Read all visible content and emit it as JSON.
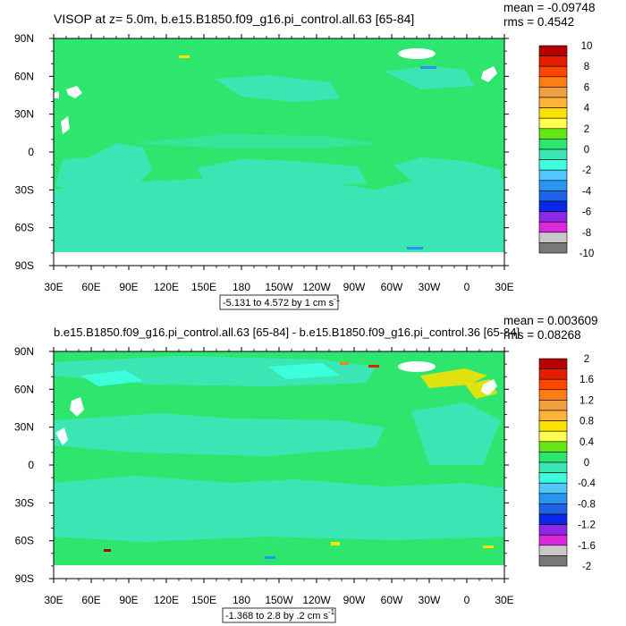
{
  "chart_data": [
    {
      "type": "heatmap",
      "title": "VISOP at z=   5.0m, b.e15.B1850.f09_g16.pi_control.all.63 [65-84]",
      "stats": {
        "mean": "mean = -0.09748",
        "rms": "rms = 0.4542"
      },
      "x_ticks": [
        "30E",
        "60E",
        "90E",
        "120E",
        "150E",
        "180",
        "150W",
        "120W",
        "90W",
        "60W",
        "30W",
        "0",
        "30E"
      ],
      "y_ticks": [
        "90N",
        "60N",
        "30N",
        "0",
        "30S",
        "60S",
        "90S"
      ],
      "ylim": [
        -90,
        90
      ],
      "xlim": [
        30,
        390
      ],
      "colorbar_labels": [
        "10",
        "8",
        "6",
        "4",
        "2",
        "0",
        "-2",
        "-4",
        "-6",
        "-8",
        "-10"
      ],
      "colorbar_colors": [
        "#b40000",
        "#e61e00",
        "#ff4600",
        "#ff7e14",
        "#f0a040",
        "#ffb43c",
        "#ffe100",
        "#ffff50",
        "#64e614",
        "#2ee66e",
        "#3ce6b4",
        "#3cffdc",
        "#50c8ff",
        "#2896f0",
        "#1e64e6",
        "#0a28e6",
        "#8c28e6",
        "#dc28dc",
        "#c8c8c8",
        "#787878"
      ],
      "contour_info": "-5.131 to 4.572 by 1 cm s",
      "contour_unit_sup": "-1"
    },
    {
      "type": "heatmap",
      "title": "b.e15.B1850.f09_g16.pi_control.all.63 [65-84] - b.e15.B1850.f09_g16.pi_control.36 [65-84]",
      "stats": {
        "mean": "mean = 0.003609",
        "rms": "rms = 0.08268"
      },
      "x_ticks": [
        "30E",
        "60E",
        "90E",
        "120E",
        "150E",
        "180",
        "150W",
        "120W",
        "90W",
        "60W",
        "30W",
        "0",
        "30E"
      ],
      "y_ticks": [
        "90N",
        "60N",
        "30N",
        "0",
        "30S",
        "60S",
        "90S"
      ],
      "ylim": [
        -90,
        90
      ],
      "xlim": [
        30,
        390
      ],
      "colorbar_labels": [
        "2",
        "1.6",
        "1.2",
        "0.8",
        "0.4",
        "0",
        "-0.4",
        "-0.8",
        "-1.2",
        "-1.6",
        "-2"
      ],
      "colorbar_colors": [
        "#b40000",
        "#e61e00",
        "#ff4600",
        "#ff7e14",
        "#f0a040",
        "#ffb43c",
        "#ffe100",
        "#ffff50",
        "#64e614",
        "#2ee66e",
        "#3ce6b4",
        "#3cffdc",
        "#50c8ff",
        "#2896f0",
        "#1e64e6",
        "#0a28e6",
        "#8c28e6",
        "#dc28dc",
        "#c8c8c8",
        "#787878"
      ],
      "contour_info": "-1.368 to 2.8 by .2 cm s",
      "contour_unit_sup": "-1"
    }
  ],
  "colors": {
    "ocean_main": "#2ee66e",
    "ocean_low": "#3ce6b4",
    "ocean_low2": "#3cffdc",
    "land_missing": "#ffffff"
  }
}
